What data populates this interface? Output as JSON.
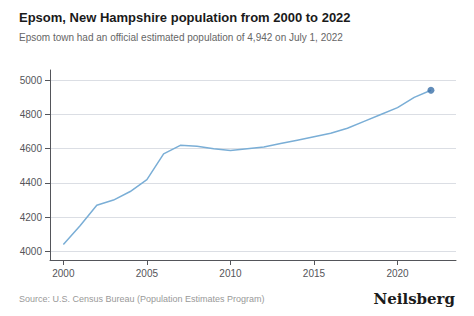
{
  "chart_data": {
    "type": "line",
    "title": "Epsom, New Hampshire population from 2000 to 2022",
    "subtitle": "Epsom town had an official estimated population of 4,942 on July 1, 2022",
    "source": "Source: U.S. Census Bureau (Population Estimates Program)",
    "branding": "Neilsberg",
    "x": [
      2000,
      2001,
      2002,
      2003,
      2004,
      2005,
      2006,
      2007,
      2008,
      2009,
      2010,
      2011,
      2012,
      2013,
      2014,
      2015,
      2016,
      2017,
      2018,
      2019,
      2020,
      2021,
      2022
    ],
    "series": [
      {
        "type": "line",
        "color": "#7aaed6",
        "values": [
          4040,
          4150,
          4270,
          4300,
          4350,
          4420,
          4570,
          4620,
          4615,
          4600,
          4590,
          4600,
          4610,
          4630,
          4650,
          4670,
          4690,
          4720,
          4760,
          4800,
          4840,
          4900,
          4942
        ]
      },
      {
        "type": "scatter",
        "color": "#3a6fa8",
        "values": [
          null,
          null,
          null,
          null,
          null,
          null,
          null,
          null,
          null,
          null,
          null,
          null,
          null,
          null,
          null,
          null,
          null,
          null,
          null,
          null,
          null,
          null,
          4942
        ]
      }
    ],
    "xlim": [
      1999.2,
      2023.5
    ],
    "xticks": [
      2000,
      2005,
      2010,
      2015,
      2020
    ],
    "ylim": [
      3950,
      5060
    ],
    "yticks": [
      4000,
      4200,
      4400,
      4600,
      4800,
      5000
    ],
    "grid": true
  }
}
